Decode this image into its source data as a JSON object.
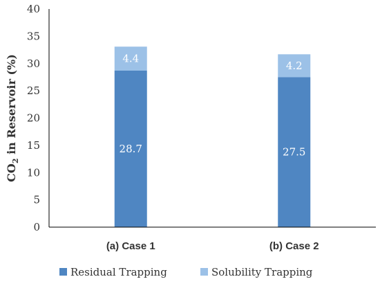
{
  "chart_data": {
    "type": "bar",
    "stacked": true,
    "categories": [
      "(a) Case 1",
      "(b) Case 2"
    ],
    "series": [
      {
        "name": "Residual Trapping",
        "values": [
          28.7,
          27.5
        ],
        "color": "#4f86c2"
      },
      {
        "name": "Solubility Trapping",
        "values": [
          4.4,
          4.2
        ],
        "color": "#9cc1e7"
      }
    ],
    "ylabel": {
      "main": "CO",
      "sub": "2",
      "rest": " in Reservoir (%)"
    },
    "ylim": [
      0,
      40
    ],
    "yticks": [
      0,
      5,
      10,
      15,
      20,
      25,
      30,
      35,
      40
    ],
    "grid": false,
    "legend": "bottom"
  }
}
